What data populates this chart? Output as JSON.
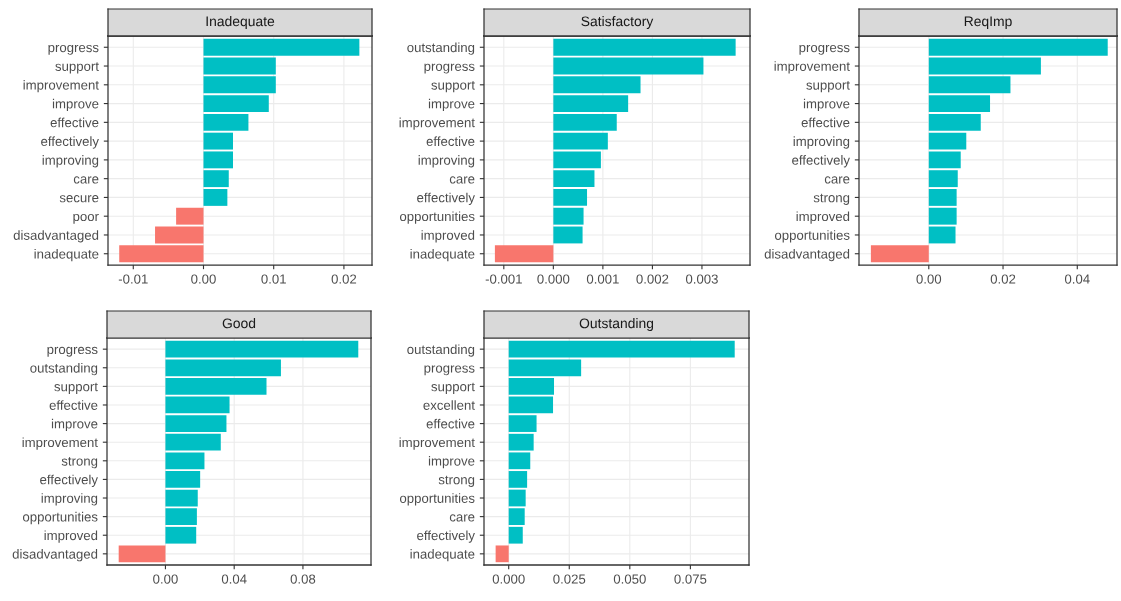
{
  "chart_data": [
    {
      "type": "bar",
      "orientation": "horizontal",
      "title": "Inadequate",
      "grid": true,
      "categories": [
        "progress",
        "support",
        "improvement",
        "improve",
        "effective",
        "effectively",
        "improving",
        "care",
        "secure",
        "poor",
        "disadvantaged",
        "inadequate"
      ],
      "values": [
        0.0222,
        0.0103,
        0.0103,
        0.0093,
        0.0064,
        0.0042,
        0.0042,
        0.0036,
        0.0034,
        -0.0039,
        -0.0069,
        -0.012
      ],
      "colors": [
        "#00bfc4",
        "#00bfc4",
        "#00bfc4",
        "#00bfc4",
        "#00bfc4",
        "#00bfc4",
        "#00bfc4",
        "#00bfc4",
        "#00bfc4",
        "#f8766d",
        "#f8766d",
        "#f8766d"
      ],
      "xlim": [
        -0.0136,
        0.024
      ],
      "xticks": [
        {
          "value": -0.01,
          "label": "-0.01"
        },
        {
          "value": 0,
          "label": "0.00"
        },
        {
          "value": 0.01,
          "label": "0.01"
        },
        {
          "value": 0.02,
          "label": "0.02"
        }
      ]
    },
    {
      "type": "bar",
      "orientation": "horizontal",
      "title": "Satisfactory",
      "grid": true,
      "categories": [
        "outstanding",
        "progress",
        "support",
        "improve",
        "improvement",
        "effective",
        "improving",
        "care",
        "effectively",
        "opportunities",
        "improved",
        "inadequate"
      ],
      "values": [
        0.00368,
        0.00303,
        0.00176,
        0.00151,
        0.00128,
        0.0011,
        0.00096,
        0.00083,
        0.00068,
        0.00061,
        0.00059,
        -0.00118
      ],
      "colors": [
        "#00bfc4",
        "#00bfc4",
        "#00bfc4",
        "#00bfc4",
        "#00bfc4",
        "#00bfc4",
        "#00bfc4",
        "#00bfc4",
        "#00bfc4",
        "#00bfc4",
        "#00bfc4",
        "#f8766d"
      ],
      "xlim": [
        -0.0014,
        0.00397
      ],
      "xticks": [
        {
          "value": -0.001,
          "label": "-0.001"
        },
        {
          "value": 0,
          "label": "0.000"
        },
        {
          "value": 0.001,
          "label": "0.001"
        },
        {
          "value": 0.002,
          "label": "0.002"
        },
        {
          "value": 0.003,
          "label": "0.003"
        }
      ]
    },
    {
      "type": "bar",
      "orientation": "horizontal",
      "title": "ReqImp",
      "grid": true,
      "categories": [
        "progress",
        "improvement",
        "support",
        "improve",
        "effective",
        "improving",
        "effectively",
        "care",
        "strong",
        "improved",
        "opportunities",
        "disadvantaged"
      ],
      "values": [
        0.0482,
        0.0302,
        0.022,
        0.0165,
        0.014,
        0.0101,
        0.0086,
        0.0078,
        0.0075,
        0.0075,
        0.0072,
        -0.0156
      ],
      "colors": [
        "#00bfc4",
        "#00bfc4",
        "#00bfc4",
        "#00bfc4",
        "#00bfc4",
        "#00bfc4",
        "#00bfc4",
        "#00bfc4",
        "#00bfc4",
        "#00bfc4",
        "#00bfc4",
        "#f8766d"
      ],
      "xlim": [
        -0.0188,
        0.0507
      ],
      "xticks": [
        {
          "value": 0,
          "label": "0.00"
        },
        {
          "value": 0.02,
          "label": "0.02"
        },
        {
          "value": 0.04,
          "label": "0.04"
        }
      ]
    },
    {
      "type": "bar",
      "orientation": "horizontal",
      "title": "Good",
      "grid": true,
      "categories": [
        "progress",
        "outstanding",
        "support",
        "effective",
        "improve",
        "improvement",
        "strong",
        "effectively",
        "improving",
        "opportunities",
        "improved",
        "disadvantaged"
      ],
      "values": [
        0.1122,
        0.0672,
        0.0588,
        0.0373,
        0.0355,
        0.0322,
        0.0227,
        0.0202,
        0.0188,
        0.0183,
        0.0179,
        -0.0272
      ],
      "colors": [
        "#00bfc4",
        "#00bfc4",
        "#00bfc4",
        "#00bfc4",
        "#00bfc4",
        "#00bfc4",
        "#00bfc4",
        "#00bfc4",
        "#00bfc4",
        "#00bfc4",
        "#00bfc4",
        "#f8766d"
      ],
      "xlim": [
        -0.034,
        0.1196
      ],
      "xticks": [
        {
          "value": 0,
          "label": "0.00"
        },
        {
          "value": 0.04,
          "label": "0.04"
        },
        {
          "value": 0.08,
          "label": "0.08"
        }
      ]
    },
    {
      "type": "bar",
      "orientation": "horizontal",
      "title": "Outstanding",
      "grid": true,
      "categories": [
        "outstanding",
        "progress",
        "support",
        "excellent",
        "effective",
        "improvement",
        "improve",
        "strong",
        "opportunities",
        "care",
        "effectively",
        "inadequate"
      ],
      "values": [
        0.0933,
        0.0299,
        0.0187,
        0.0183,
        0.0115,
        0.0103,
        0.0089,
        0.0076,
        0.007,
        0.0066,
        0.0058,
        -0.0054
      ],
      "colors": [
        "#00bfc4",
        "#00bfc4",
        "#00bfc4",
        "#00bfc4",
        "#00bfc4",
        "#00bfc4",
        "#00bfc4",
        "#00bfc4",
        "#00bfc4",
        "#00bfc4",
        "#00bfc4",
        "#f8766d"
      ],
      "xlim": [
        -0.0102,
        0.0992
      ],
      "xticks": [
        {
          "value": 0,
          "label": "0.000"
        },
        {
          "value": 0.025,
          "label": "0.025"
        },
        {
          "value": 0.05,
          "label": "0.050"
        },
        {
          "value": 0.075,
          "label": "0.075"
        }
      ]
    }
  ]
}
